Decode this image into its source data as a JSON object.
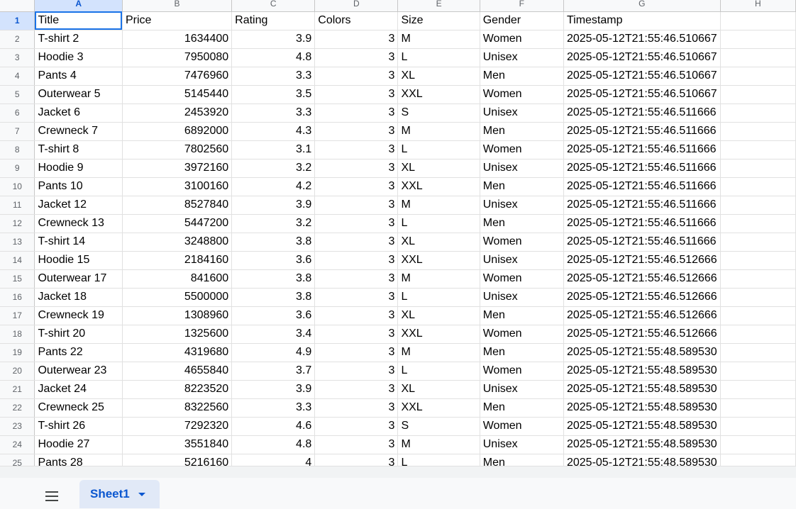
{
  "columns": [
    "A",
    "B",
    "C",
    "D",
    "E",
    "F",
    "G",
    "H"
  ],
  "header_row": {
    "num": "1",
    "cells": [
      "Title",
      "Price",
      "Rating",
      "Colors",
      "Size",
      "Gender",
      "Timestamp",
      ""
    ]
  },
  "rows": [
    {
      "num": "2",
      "cells": [
        "T-shirt 2",
        "1634400",
        "3.9",
        "3",
        "M",
        "Women",
        "2025-05-12T21:55:46.510667",
        ""
      ]
    },
    {
      "num": "3",
      "cells": [
        "Hoodie 3",
        "7950080",
        "4.8",
        "3",
        "L",
        "Unisex",
        "2025-05-12T21:55:46.510667",
        ""
      ]
    },
    {
      "num": "4",
      "cells": [
        "Pants 4",
        "7476960",
        "3.3",
        "3",
        "XL",
        "Men",
        "2025-05-12T21:55:46.510667",
        ""
      ]
    },
    {
      "num": "5",
      "cells": [
        "Outerwear 5",
        "5145440",
        "3.5",
        "3",
        "XXL",
        "Women",
        "2025-05-12T21:55:46.510667",
        ""
      ]
    },
    {
      "num": "6",
      "cells": [
        "Jacket 6",
        "2453920",
        "3.3",
        "3",
        "S",
        "Unisex",
        "2025-05-12T21:55:46.511666",
        ""
      ]
    },
    {
      "num": "7",
      "cells": [
        "Crewneck 7",
        "6892000",
        "4.3",
        "3",
        "M",
        "Men",
        "2025-05-12T21:55:46.511666",
        ""
      ]
    },
    {
      "num": "8",
      "cells": [
        "T-shirt 8",
        "7802560",
        "3.1",
        "3",
        "L",
        "Women",
        "2025-05-12T21:55:46.511666",
        ""
      ]
    },
    {
      "num": "9",
      "cells": [
        "Hoodie 9",
        "3972160",
        "3.2",
        "3",
        "XL",
        "Unisex",
        "2025-05-12T21:55:46.511666",
        ""
      ]
    },
    {
      "num": "10",
      "cells": [
        "Pants 10",
        "3100160",
        "4.2",
        "3",
        "XXL",
        "Men",
        "2025-05-12T21:55:46.511666",
        ""
      ]
    },
    {
      "num": "11",
      "cells": [
        "Jacket 12",
        "8527840",
        "3.9",
        "3",
        "M",
        "Unisex",
        "2025-05-12T21:55:46.511666",
        ""
      ]
    },
    {
      "num": "12",
      "cells": [
        "Crewneck 13",
        "5447200",
        "3.2",
        "3",
        "L",
        "Men",
        "2025-05-12T21:55:46.511666",
        ""
      ]
    },
    {
      "num": "13",
      "cells": [
        "T-shirt 14",
        "3248800",
        "3.8",
        "3",
        "XL",
        "Women",
        "2025-05-12T21:55:46.511666",
        ""
      ]
    },
    {
      "num": "14",
      "cells": [
        "Hoodie 15",
        "2184160",
        "3.6",
        "3",
        "XXL",
        "Unisex",
        "2025-05-12T21:55:46.512666",
        ""
      ]
    },
    {
      "num": "15",
      "cells": [
        "Outerwear 17",
        "841600",
        "3.8",
        "3",
        "M",
        "Women",
        "2025-05-12T21:55:46.512666",
        ""
      ]
    },
    {
      "num": "16",
      "cells": [
        "Jacket 18",
        "5500000",
        "3.8",
        "3",
        "L",
        "Unisex",
        "2025-05-12T21:55:46.512666",
        ""
      ]
    },
    {
      "num": "17",
      "cells": [
        "Crewneck 19",
        "1308960",
        "3.6",
        "3",
        "XL",
        "Men",
        "2025-05-12T21:55:46.512666",
        ""
      ]
    },
    {
      "num": "18",
      "cells": [
        "T-shirt 20",
        "1325600",
        "3.4",
        "3",
        "XXL",
        "Women",
        "2025-05-12T21:55:46.512666",
        ""
      ]
    },
    {
      "num": "19",
      "cells": [
        "Pants 22",
        "4319680",
        "4.9",
        "3",
        "M",
        "Men",
        "2025-05-12T21:55:48.589530",
        ""
      ]
    },
    {
      "num": "20",
      "cells": [
        "Outerwear 23",
        "4655840",
        "3.7",
        "3",
        "L",
        "Women",
        "2025-05-12T21:55:48.589530",
        ""
      ]
    },
    {
      "num": "21",
      "cells": [
        "Jacket 24",
        "8223520",
        "3.9",
        "3",
        "XL",
        "Unisex",
        "2025-05-12T21:55:48.589530",
        ""
      ]
    },
    {
      "num": "22",
      "cells": [
        "Crewneck 25",
        "8322560",
        "3.3",
        "3",
        "XXL",
        "Men",
        "2025-05-12T21:55:48.589530",
        ""
      ]
    },
    {
      "num": "23",
      "cells": [
        "T-shirt 26",
        "7292320",
        "4.6",
        "3",
        "S",
        "Women",
        "2025-05-12T21:55:48.589530",
        ""
      ]
    },
    {
      "num": "24",
      "cells": [
        "Hoodie 27",
        "3551840",
        "4.8",
        "3",
        "M",
        "Unisex",
        "2025-05-12T21:55:48.589530",
        ""
      ]
    },
    {
      "num": "25",
      "cells": [
        "Pants 28",
        "5216160",
        "4",
        "3",
        "L",
        "Men",
        "2025-05-12T21:55:48.589530",
        ""
      ]
    }
  ],
  "sheet_tab": {
    "label": "Sheet1"
  },
  "icons": {
    "all_sheets": "hamburger-menu-icon",
    "tab_menu": "caret-down-icon"
  },
  "colors": {
    "selection": "#1a73e8",
    "active_header_bg": "#d3e3fd",
    "active_header_text": "#0b57d0"
  }
}
